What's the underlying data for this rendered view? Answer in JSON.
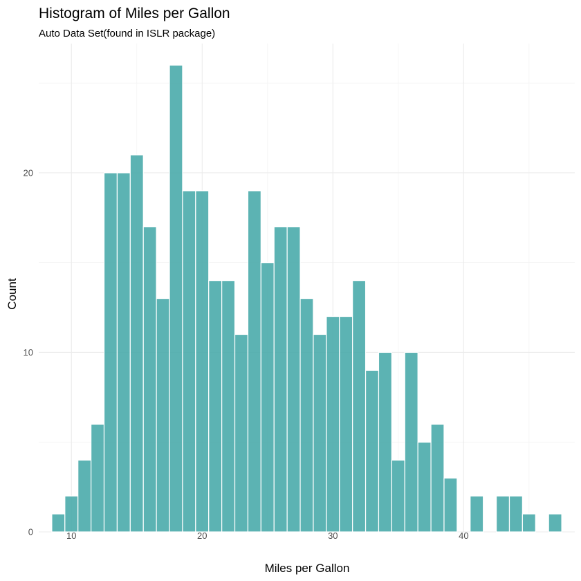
{
  "chart_data": {
    "type": "bar",
    "title": "Histogram of Miles per Gallon",
    "subtitle": "Auto Data Set(found in ISLR package)",
    "xlabel": "Miles per Gallon",
    "ylabel": "Count",
    "xlim": [
      7.5,
      48.5
    ],
    "ylim": [
      0,
      27.2
    ],
    "x_ticks": [
      10,
      20,
      30,
      40
    ],
    "y_ticks": [
      0,
      10,
      20
    ],
    "grid": true,
    "bar_color": "#45a8a8",
    "bins": [
      {
        "x": 9,
        "count": 1
      },
      {
        "x": 10,
        "count": 2
      },
      {
        "x": 11,
        "count": 4
      },
      {
        "x": 12,
        "count": 6
      },
      {
        "x": 13,
        "count": 20
      },
      {
        "x": 14,
        "count": 20
      },
      {
        "x": 15,
        "count": 21
      },
      {
        "x": 16,
        "count": 17
      },
      {
        "x": 17,
        "count": 13
      },
      {
        "x": 18,
        "count": 26
      },
      {
        "x": 19,
        "count": 19
      },
      {
        "x": 20,
        "count": 19
      },
      {
        "x": 21,
        "count": 14
      },
      {
        "x": 22,
        "count": 14
      },
      {
        "x": 23,
        "count": 11
      },
      {
        "x": 24,
        "count": 19
      },
      {
        "x": 25,
        "count": 15
      },
      {
        "x": 26,
        "count": 17
      },
      {
        "x": 27,
        "count": 17
      },
      {
        "x": 28,
        "count": 13
      },
      {
        "x": 29,
        "count": 11
      },
      {
        "x": 30,
        "count": 12
      },
      {
        "x": 31,
        "count": 12
      },
      {
        "x": 32,
        "count": 14
      },
      {
        "x": 33,
        "count": 9
      },
      {
        "x": 34,
        "count": 10
      },
      {
        "x": 35,
        "count": 4
      },
      {
        "x": 36,
        "count": 10
      },
      {
        "x": 37,
        "count": 5
      },
      {
        "x": 38,
        "count": 6
      },
      {
        "x": 39,
        "count": 3
      },
      {
        "x": 41,
        "count": 2
      },
      {
        "x": 43,
        "count": 2
      },
      {
        "x": 44,
        "count": 2
      },
      {
        "x": 45,
        "count": 1
      },
      {
        "x": 47,
        "count": 1
      }
    ]
  }
}
